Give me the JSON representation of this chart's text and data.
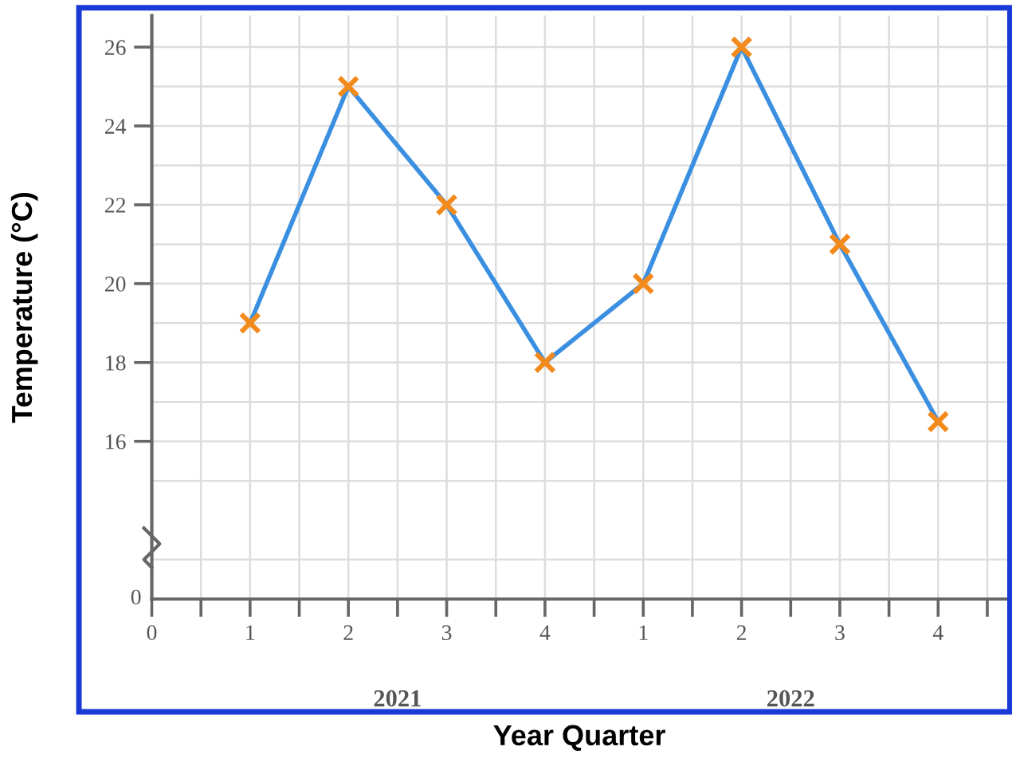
{
  "chart_data": {
    "type": "line",
    "xlabel": "Year Quarter",
    "ylabel": "Temperature (°C)",
    "categories": [
      "0",
      "1",
      "2",
      "3",
      "4",
      "1",
      "2",
      "3",
      "4"
    ],
    "series": [
      {
        "color": "#3a8fe0",
        "colors": [
          "#f28a1c",
          "#f28a1c",
          "#f28a1c",
          "#f28a1c",
          "#f28a1c",
          "#f28a1c",
          "#f28a1c",
          "#f28a1c",
          "#f28a1c"
        ],
        "values": [
          null,
          19,
          25,
          22,
          18,
          20,
          26,
          21,
          16.5
        ]
      }
    ],
    "marker": "cross",
    "line_style": "solid",
    "grid": true,
    "legend": false,
    "ylim": [
      12,
      26.8
    ],
    "yticks": [
      16,
      18,
      20,
      22,
      24,
      26
    ],
    "annotations": [
      "0",
      "2021",
      "2022"
    ]
  }
}
